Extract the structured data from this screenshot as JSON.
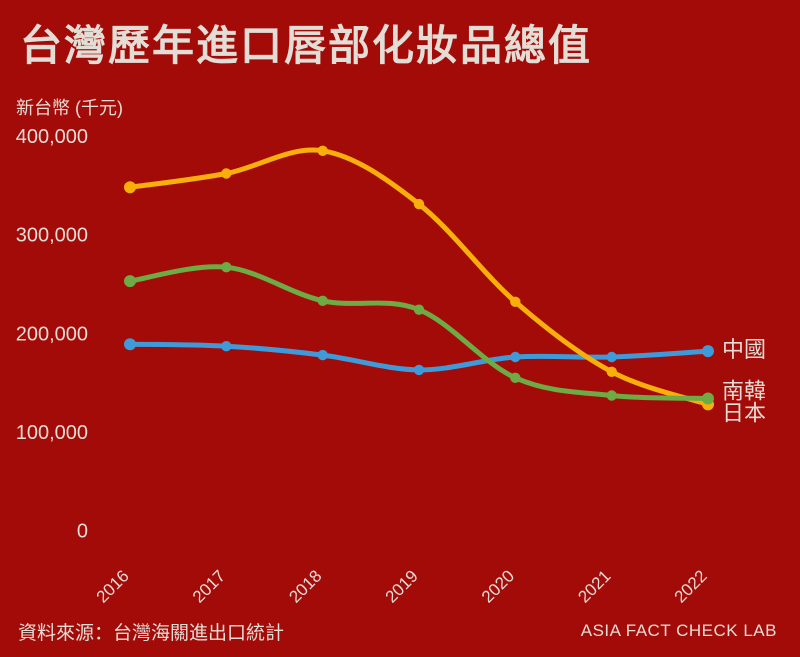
{
  "page": {
    "background_color": "#A30B09",
    "text_color": "#E2DDD5"
  },
  "chart_data": {
    "type": "line",
    "title": "台灣歷年進口唇部化妝品總值",
    "unit_label": "新台幣 (千元)",
    "x": [
      "2016",
      "2017",
      "2018",
      "2019",
      "2020",
      "2021",
      "2022"
    ],
    "series": [
      {
        "id": "china",
        "name": "中國",
        "color": "#3E9AD8",
        "values": [
          189000,
          187000,
          178000,
          163000,
          176000,
          176000,
          182000
        ]
      },
      {
        "id": "japan",
        "name": "日本",
        "color": "#F9AF0B",
        "values": [
          348000,
          362000,
          385000,
          331000,
          232000,
          161000,
          128000
        ]
      },
      {
        "id": "korea",
        "name": "南韓",
        "color": "#6DAB44",
        "values": [
          253000,
          267000,
          233000,
          224000,
          155000,
          137000,
          134000
        ]
      }
    ],
    "ylim": [
      0,
      400000
    ],
    "yticks": [
      0,
      100000,
      200000,
      300000,
      400000
    ],
    "ytick_labels": [
      "0",
      "100,000",
      "200,000",
      "300,000",
      "400,000"
    ],
    "grid": false,
    "legend_position": "right-end-labels"
  },
  "footer": {
    "source": "資料來源：台灣海關進出口統計",
    "credit": "ASIA FACT CHECK LAB"
  }
}
